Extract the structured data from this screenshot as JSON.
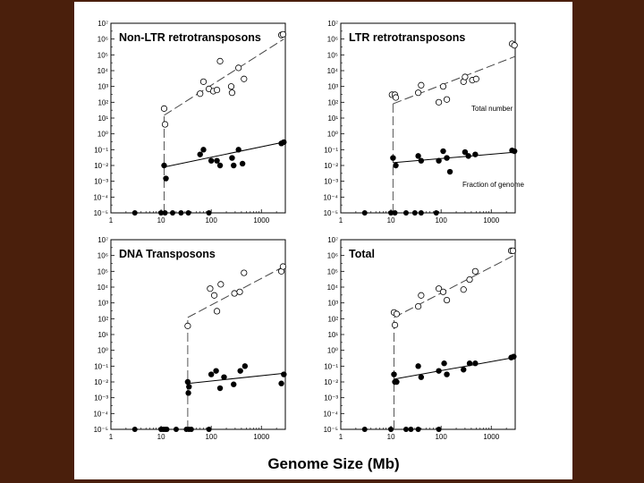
{
  "chart_data": {
    "type": "scatter",
    "xlabel": "Genome Size (Mb)",
    "x_scale": "log",
    "y_scale": "log",
    "xlim": [
      1,
      3000
    ],
    "ylim": [
      1e-05,
      10000000.0
    ],
    "x_ticks": [
      "1",
      "10",
      "100",
      "1000"
    ],
    "y_ticks": [
      "10⁻⁵",
      "10⁻⁴",
      "10⁻³",
      "10⁻²",
      "10⁻¹",
      "10⁰",
      "10¹",
      "10²",
      "10³",
      "10⁴",
      "10⁵",
      "10⁶",
      "10⁷"
    ],
    "panels": [
      {
        "title": "Non-LTR retrotransposons",
        "annotations": [],
        "total_number": {
          "x": [
            11.5,
            12,
            60,
            70,
            90,
            110,
            130,
            150,
            250,
            260,
            350,
            450,
            2500,
            2700
          ],
          "y": [
            40,
            4,
            350,
            2000,
            700,
            500,
            600,
            40000,
            1000,
            400,
            15000,
            3000,
            1800000,
            2000000
          ]
        },
        "fraction_of_genome": {
          "x": [
            11.5,
            12.5,
            60,
            70,
            100,
            130,
            150,
            260,
            280,
            350,
            420,
            2500,
            2800
          ],
          "y": [
            0.01,
            0.0015,
            0.05,
            0.1,
            0.02,
            0.02,
            0.01,
            0.03,
            0.01,
            0.1,
            0.013,
            0.25,
            0.3
          ]
        },
        "zero_points_x": [
          3,
          10,
          12,
          17,
          25,
          35,
          90
        ],
        "total_fit": {
          "x_start": 11.5,
          "x_end": 2800,
          "y_start": 15,
          "y_end": 1000000
        },
        "fraction_fit": {
          "x_start": 11.5,
          "x_end": 2800,
          "y_start": 0.008,
          "y_end": 0.3
        },
        "drop_x": 11.5
      },
      {
        "title": "LTR retrotransposons",
        "annotations": [
          "Total number",
          "Fraction of genome"
        ],
        "total_number": {
          "x": [
            10.5,
            12,
            12.5,
            35,
            40,
            90,
            110,
            130,
            280,
            300,
            420,
            500,
            2600,
            2900
          ],
          "y": [
            300,
            300,
            200,
            400,
            1200,
            100,
            1000,
            150,
            2000,
            4000,
            2500,
            3000,
            500000,
            400000
          ]
        },
        "fraction_of_genome": {
          "x": [
            11,
            12.5,
            35,
            40,
            90,
            110,
            130,
            150,
            300,
            350,
            480,
            2600,
            2900
          ],
          "y": [
            0.03,
            0.01,
            0.04,
            0.02,
            0.02,
            0.08,
            0.03,
            0.004,
            0.07,
            0.04,
            0.05,
            0.09,
            0.08
          ]
        },
        "zero_points_x": [
          3,
          10,
          12,
          20,
          30,
          40,
          80
        ],
        "total_fit": {
          "x_start": 11,
          "x_end": 3000,
          "y_start": 80,
          "y_end": 80000
        },
        "fraction_fit": {
          "x_start": 11,
          "x_end": 3000,
          "y_start": 0.015,
          "y_end": 0.07
        }
      },
      {
        "title": "DNA Transposons",
        "annotations": [],
        "total_number": {
          "x": [
            34,
            95,
            115,
            130,
            155,
            290,
            370,
            450,
            2500,
            2700
          ],
          "y": [
            35,
            8000,
            3000,
            300,
            15000,
            4000,
            5000,
            80000,
            100000,
            200000
          ]
        },
        "fraction_of_genome": {
          "x": [
            34,
            35,
            36,
            100,
            125,
            150,
            180,
            280,
            380,
            470,
            2500,
            2800
          ],
          "y": [
            0.01,
            0.002,
            0.005,
            0.03,
            0.05,
            0.004,
            0.02,
            0.007,
            0.05,
            0.1,
            0.008,
            0.03
          ]
        },
        "zero_points_x": [
          3,
          10,
          11,
          12,
          13,
          20,
          32,
          36,
          40,
          90
        ],
        "total_fit": {
          "x_start": 34,
          "x_end": 2800,
          "y_start": 120,
          "y_end": 200000
        },
        "fraction_fit": {
          "x_start": 34,
          "x_end": 2800,
          "y_start": 0.008,
          "y_end": 0.035
        },
        "drop_x": 34
      },
      {
        "title": "Total",
        "annotations": [],
        "total_number": {
          "x": [
            11.5,
            12,
            13,
            35,
            40,
            90,
            110,
            130,
            280,
            370,
            480,
            2500,
            2700
          ],
          "y": [
            250,
            40,
            200,
            600,
            3000,
            8000,
            5000,
            1500,
            7000,
            30000,
            100000,
            2000000,
            2000000
          ]
        },
        "fraction_of_genome": {
          "x": [
            11.5,
            12,
            13,
            35,
            40,
            90,
            115,
            130,
            280,
            370,
            480,
            2500,
            2800
          ],
          "y": [
            0.03,
            0.01,
            0.01,
            0.1,
            0.02,
            0.05,
            0.15,
            0.03,
            0.06,
            0.15,
            0.15,
            0.35,
            0.4
          ]
        },
        "zero_points_x": [
          3,
          10,
          20,
          25,
          35,
          90
        ],
        "total_fit": {
          "x_start": 11.5,
          "x_end": 2800,
          "y_start": 120,
          "y_end": 1000000
        },
        "fraction_fit": {
          "x_start": 11.5,
          "x_end": 2800,
          "y_start": 0.015,
          "y_end": 0.35
        },
        "drop_x": 11.5
      }
    ]
  }
}
